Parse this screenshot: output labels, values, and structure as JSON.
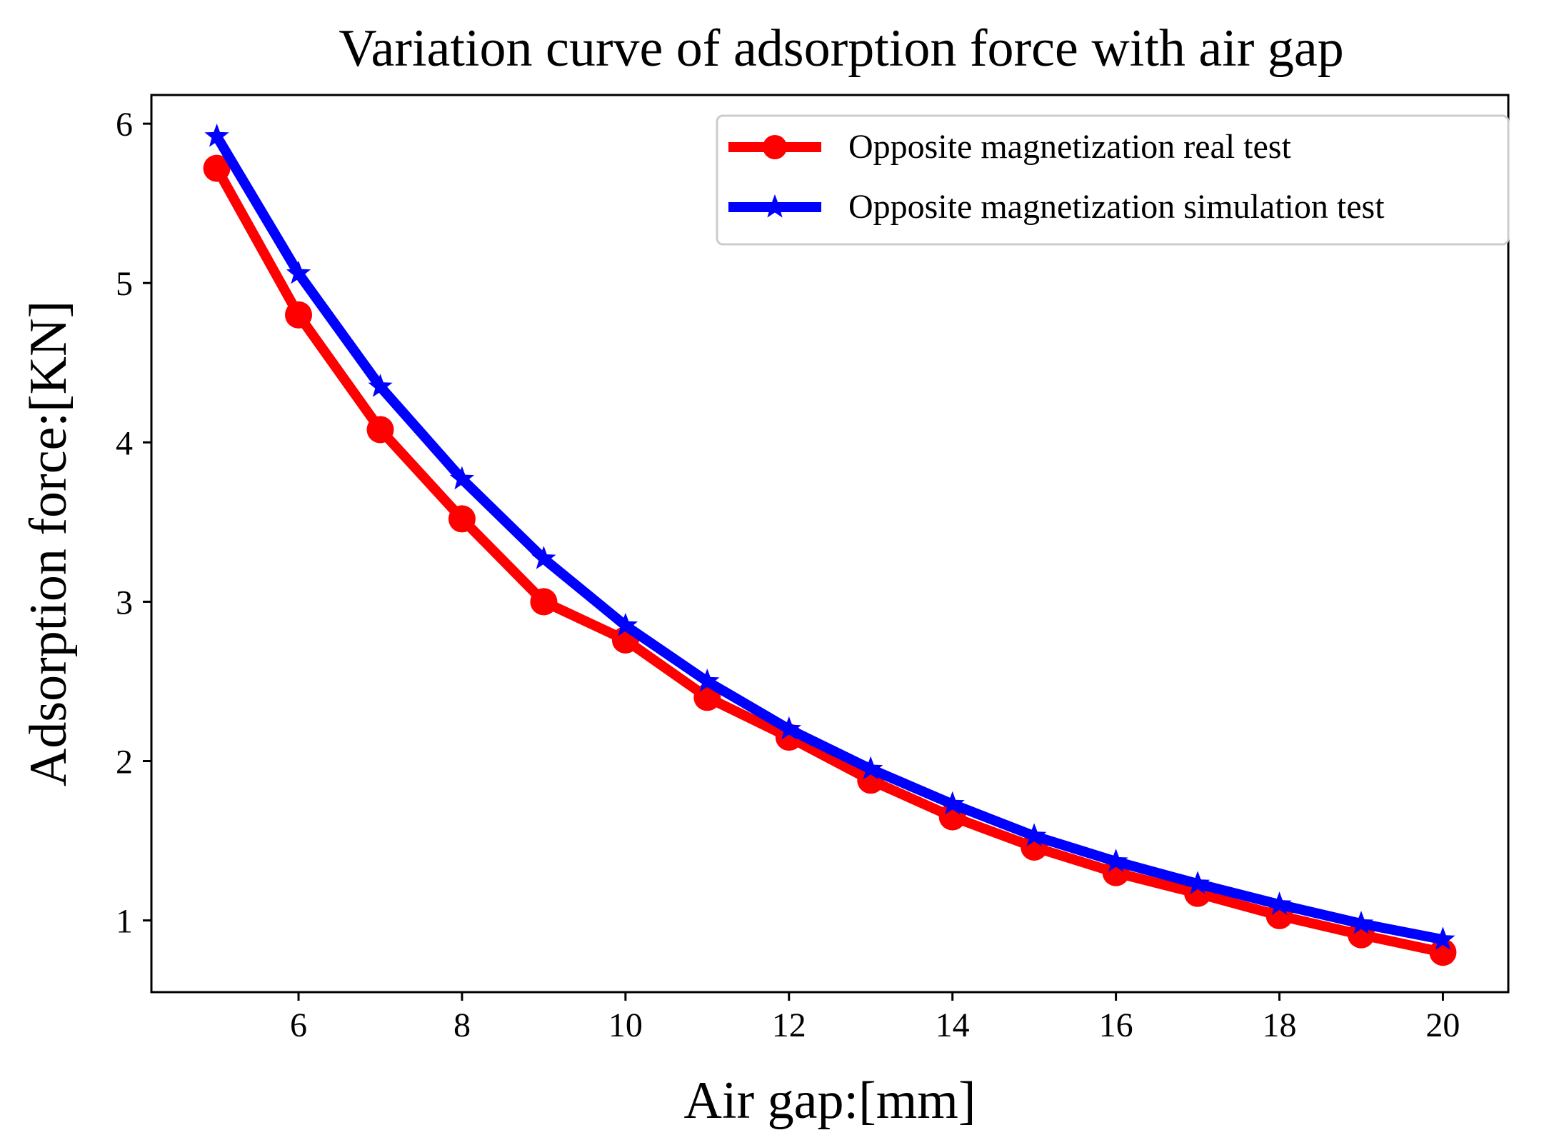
{
  "chart_data": {
    "type": "line",
    "title": "Variation curve of adsorption force with air gap",
    "xlabel": "Air gap:[mm]",
    "ylabel": "Adsorption force:[KN]",
    "xlim": [
      4.2,
      20.8
    ],
    "ylim": [
      0.55,
      6.18
    ],
    "x_ticks": [
      6,
      8,
      10,
      12,
      14,
      16,
      18,
      20
    ],
    "y_ticks": [
      1,
      2,
      3,
      4,
      5,
      6
    ],
    "grid": false,
    "legend_position": "top-right",
    "x": [
      5,
      6,
      7,
      8,
      9,
      10,
      11,
      12,
      13,
      14,
      15,
      16,
      17,
      18,
      19,
      20
    ],
    "series": [
      {
        "name": "Opposite magnetization real test",
        "color": "#ff0000",
        "marker": "circle",
        "values": [
          5.72,
          4.8,
          4.08,
          3.52,
          3.0,
          2.76,
          2.4,
          2.15,
          1.88,
          1.65,
          1.46,
          1.3,
          1.17,
          1.03,
          0.91,
          0.8
        ]
      },
      {
        "name": "Opposite magnetization simulation test",
        "color": "#0000ff",
        "marker": "star",
        "values": [
          5.92,
          5.06,
          4.35,
          3.77,
          3.27,
          2.85,
          2.5,
          2.2,
          1.95,
          1.73,
          1.53,
          1.37,
          1.23,
          1.1,
          0.98,
          0.88
        ]
      }
    ]
  }
}
